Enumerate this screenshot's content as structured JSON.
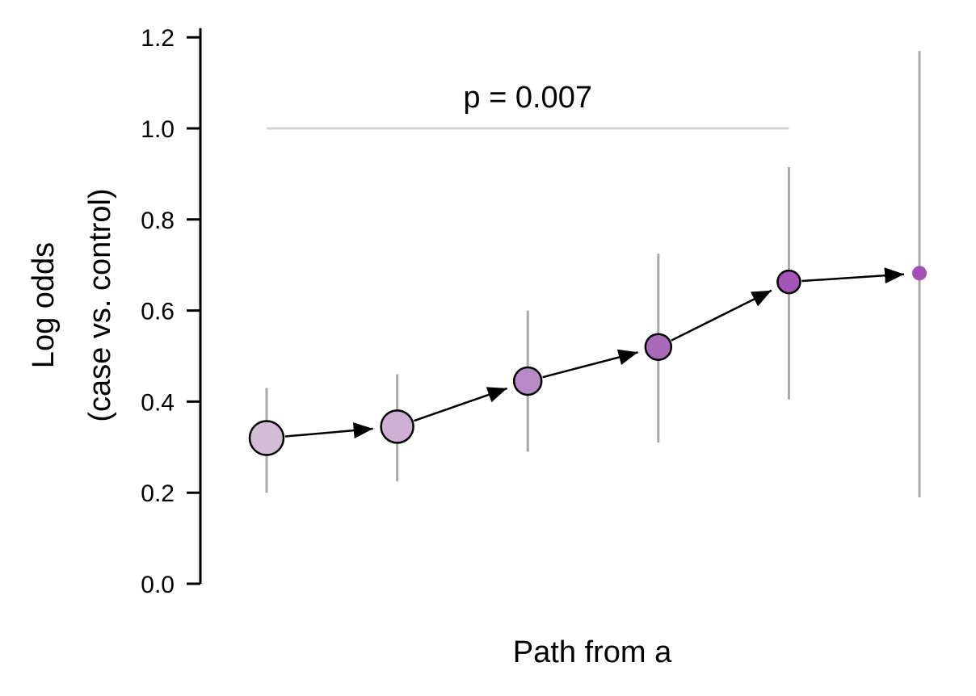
{
  "chart_data": {
    "type": "scatter",
    "xlabel": "Path from a",
    "ylabel_line1": "Log odds",
    "ylabel_line2": "(case vs. control)",
    "ylim": [
      0,
      1.22
    ],
    "yticks": [
      0.0,
      0.2,
      0.4,
      0.6,
      0.8,
      1.0,
      1.2
    ],
    "ytick_labels": [
      "0.0",
      "0.2",
      "0.4",
      "0.6",
      "0.8",
      "1.0",
      "1.2"
    ],
    "grid": false,
    "points": [
      {
        "step": 1,
        "y": 0.32,
        "ci_low": 0.2,
        "ci_high": 0.43,
        "color": "#d2bcd6",
        "outlined": true
      },
      {
        "step": 2,
        "y": 0.345,
        "ci_low": 0.225,
        "ci_high": 0.46,
        "color": "#cdb0d3",
        "outlined": true
      },
      {
        "step": 3,
        "y": 0.445,
        "ci_low": 0.29,
        "ci_high": 0.6,
        "color": "#b98bc6",
        "outlined": true
      },
      {
        "step": 4,
        "y": 0.52,
        "ci_low": 0.31,
        "ci_high": 0.725,
        "color": "#a86ab9",
        "outlined": true
      },
      {
        "step": 5,
        "y": 0.663,
        "ci_low": 0.405,
        "ci_high": 0.915,
        "color": "#a455b7",
        "outlined": true
      },
      {
        "step": 6,
        "y": 0.682,
        "ci_low": 0.19,
        "ci_high": 1.17,
        "color": "#a44fb5",
        "outlined": false
      }
    ],
    "annotation": {
      "text": "p = 0.007",
      "from_step": 1,
      "to_step": 5,
      "y": 1.0
    },
    "colors": {
      "errorbar": "#a9a9a9",
      "bracket": "#d3d3d3",
      "arrow": "#000000",
      "axis": "#000000"
    }
  }
}
